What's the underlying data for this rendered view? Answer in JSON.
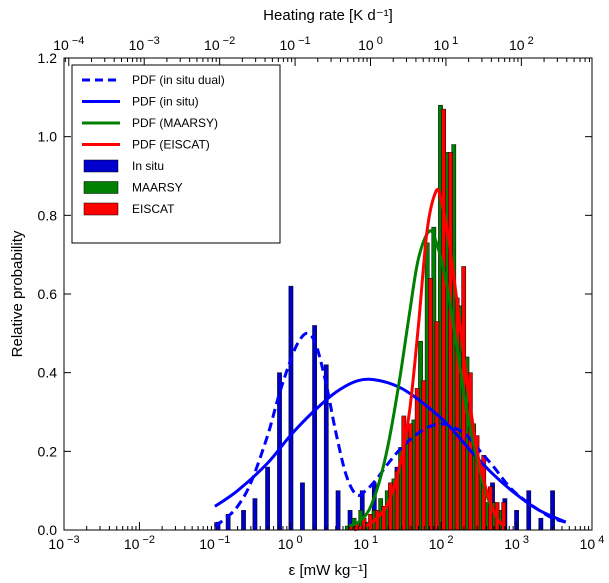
{
  "chart_data": {
    "type": "bar",
    "xlabel": "ε [mW kg⁻¹]",
    "ylabel": "Relative probability",
    "top_xlabel": "Heating rate [K d⁻¹]",
    "x_scale": "log",
    "xlim": [
      0.001,
      10000
    ],
    "ylim": [
      0,
      1.2
    ],
    "yticks": [
      "0.0",
      "0.2",
      "0.4",
      "0.6",
      "0.8",
      "1.0",
      "1.2"
    ],
    "bottom_xticks": [
      {
        "value": 0.001,
        "base": "10",
        "exp": "−3"
      },
      {
        "value": 0.01,
        "base": "10",
        "exp": "−2"
      },
      {
        "value": 0.1,
        "base": "10",
        "exp": "−1"
      },
      {
        "value": 1,
        "base": "10",
        "exp": "0"
      },
      {
        "value": 10,
        "base": "10",
        "exp": "1"
      },
      {
        "value": 100,
        "base": "10",
        "exp": "2"
      },
      {
        "value": 1000,
        "base": "10",
        "exp": "3"
      },
      {
        "value": 10000,
        "base": "10",
        "exp": "4"
      }
    ],
    "top_xticks": [
      {
        "value": 0.0001,
        "base": "10",
        "exp": "−4"
      },
      {
        "value": 0.001,
        "base": "10",
        "exp": "−3"
      },
      {
        "value": 0.01,
        "base": "10",
        "exp": "−2"
      },
      {
        "value": 0.1,
        "base": "10",
        "exp": "−1"
      },
      {
        "value": 1,
        "base": "10",
        "exp": "0"
      },
      {
        "value": 10,
        "base": "10",
        "exp": "1"
      },
      {
        "value": 100,
        "base": "10",
        "exp": "2"
      }
    ],
    "top_axis_map": "heating_rate = 0.0864 × ε",
    "grid": false,
    "legend_position": "top-left",
    "histograms": [
      {
        "name": "In situ",
        "color": "#0000cc",
        "x": [
          0.11,
          0.15,
          0.24,
          0.34,
          0.5,
          0.72,
          1.02,
          1.45,
          2.1,
          3.0,
          4.3,
          6.2,
          9.0,
          13,
          18,
          26,
          38,
          55,
          78,
          112,
          160,
          230,
          330,
          480,
          700,
          1000,
          1450,
          2100,
          3000
        ],
        "values": [
          0.02,
          0.04,
          0.05,
          0.08,
          0.16,
          0.4,
          0.62,
          0.12,
          0.52,
          0.42,
          0.1,
          0.05,
          0.1,
          0.12,
          0.06,
          0.16,
          0.2,
          0.26,
          0.3,
          0.28,
          0.25,
          0.2,
          0.15,
          0.12,
          0.08,
          0.05,
          0.1,
          0.03,
          0.1
        ]
      },
      {
        "name": "MAARSY",
        "color": "#007f00",
        "x": [
          5.7,
          7.0,
          8.6,
          10.5,
          12.9,
          15.8,
          19.3,
          23.7,
          29.0,
          35.5,
          43.5,
          53.3,
          65.3,
          80,
          98,
          120,
          147,
          180,
          220,
          270,
          330,
          405,
          496,
          608
        ],
        "values": [
          0.01,
          0.03,
          0.05,
          0.02,
          0.05,
          0.08,
          0.1,
          0.13,
          0.21,
          0.25,
          0.28,
          0.48,
          0.73,
          0.77,
          1.08,
          0.96,
          0.98,
          0.57,
          0.44,
          0.27,
          0.14,
          0.07,
          0.07,
          0.05
        ]
      },
      {
        "name": "EISCAT",
        "color": "#ff0000",
        "x": [
          6.3,
          7.7,
          9.5,
          11.6,
          14.2,
          17.4,
          21.3,
          26.1,
          32.0,
          39.2,
          48.1,
          58.9,
          72.2,
          88,
          108,
          133,
          163,
          199,
          244,
          299,
          367,
          450,
          551,
          675
        ],
        "values": [
          0.01,
          0.02,
          0.03,
          0.04,
          0.05,
          0.06,
          0.12,
          0.15,
          0.29,
          0.27,
          0.36,
          0.38,
          0.64,
          0.53,
          1.07,
          0.96,
          0.59,
          0.67,
          0.4,
          0.24,
          0.19,
          0.11,
          0.07,
          0.07
        ]
      }
    ],
    "series": [
      {
        "name": "PDF (in situ dual)",
        "color": "#0000ff",
        "style": "dashed",
        "x": [
          0.1,
          0.14,
          0.2,
          0.3,
          0.5,
          0.7,
          1.0,
          1.3,
          1.7,
          2.2,
          3.0,
          4.0,
          5.5,
          7.5,
          10,
          14,
          20,
          30,
          45,
          65,
          100,
          150,
          220,
          330,
          500,
          800,
          1200,
          2000,
          3000,
          4500
        ],
        "values": [
          0.01,
          0.03,
          0.06,
          0.12,
          0.24,
          0.34,
          0.43,
          0.48,
          0.5,
          0.47,
          0.37,
          0.25,
          0.14,
          0.09,
          0.1,
          0.13,
          0.17,
          0.21,
          0.24,
          0.26,
          0.27,
          0.26,
          0.24,
          0.2,
          0.16,
          0.11,
          0.08,
          0.05,
          0.03,
          0.02
        ]
      },
      {
        "name": "PDF (in situ)",
        "color": "#0000ff",
        "style": "solid",
        "x": [
          0.1,
          0.2,
          0.5,
          1.0,
          2.0,
          4.0,
          8.0,
          15,
          30,
          60,
          120,
          250,
          500,
          1000,
          2000,
          4500
        ],
        "values": [
          0.06,
          0.1,
          0.17,
          0.24,
          0.3,
          0.35,
          0.38,
          0.38,
          0.36,
          0.32,
          0.27,
          0.2,
          0.14,
          0.09,
          0.05,
          0.02
        ]
      },
      {
        "name": "PDF (MAARSY)",
        "color": "#008000",
        "style": "solid",
        "x": [
          6,
          8,
          11,
          15,
          20,
          28,
          38,
          50,
          70,
          90,
          120,
          160,
          220,
          300,
          400,
          550,
          700
        ],
        "values": [
          0.01,
          0.02,
          0.05,
          0.12,
          0.22,
          0.38,
          0.55,
          0.69,
          0.76,
          0.72,
          0.62,
          0.47,
          0.3,
          0.18,
          0.09,
          0.03,
          0.01
        ]
      },
      {
        "name": "PDF (EISCAT)",
        "color": "#ff0000",
        "style": "solid",
        "x": [
          7,
          10,
          14,
          20,
          28,
          38,
          50,
          65,
          85,
          100,
          130,
          170,
          230,
          300,
          400,
          550,
          700
        ],
        "values": [
          0.0,
          0.01,
          0.03,
          0.07,
          0.16,
          0.3,
          0.52,
          0.76,
          0.86,
          0.84,
          0.72,
          0.55,
          0.35,
          0.2,
          0.1,
          0.03,
          0.01
        ]
      }
    ],
    "legend": [
      {
        "label": "PDF (in situ dual)",
        "kind": "line-dashed",
        "color": "#0000ff"
      },
      {
        "label": "PDF (in situ)",
        "kind": "line",
        "color": "#0000ff"
      },
      {
        "label": "PDF (MAARSY)",
        "kind": "line",
        "color": "#008000"
      },
      {
        "label": "PDF (EISCAT)",
        "kind": "line",
        "color": "#ff0000"
      },
      {
        "label": "In situ",
        "kind": "patch",
        "color": "#0000cc"
      },
      {
        "label": "MAARSY",
        "kind": "patch",
        "color": "#007f00"
      },
      {
        "label": "EISCAT",
        "kind": "patch",
        "color": "#ff0000"
      }
    ]
  }
}
